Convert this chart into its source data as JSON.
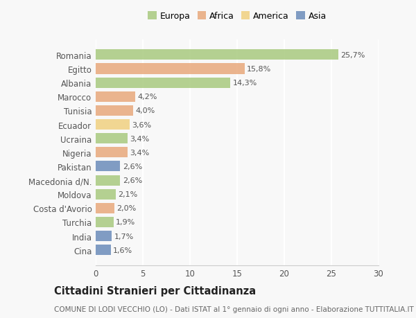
{
  "categories": [
    "Romania",
    "Egitto",
    "Albania",
    "Marocco",
    "Tunisia",
    "Ecuador",
    "Ucraina",
    "Nigeria",
    "Pakistan",
    "Macedonia d/N.",
    "Moldova",
    "Costa d'Avorio",
    "Turchia",
    "India",
    "Cina"
  ],
  "values": [
    25.7,
    15.8,
    14.3,
    4.2,
    4.0,
    3.6,
    3.4,
    3.4,
    2.6,
    2.6,
    2.1,
    2.0,
    1.9,
    1.7,
    1.6
  ],
  "labels": [
    "25,7%",
    "15,8%",
    "14,3%",
    "4,2%",
    "4,0%",
    "3,6%",
    "3,4%",
    "3,4%",
    "2,6%",
    "2,6%",
    "2,1%",
    "2,0%",
    "1,9%",
    "1,7%",
    "1,6%"
  ],
  "colors": [
    "#a8c97f",
    "#e8a87c",
    "#a8c97f",
    "#e8a87c",
    "#e8a87c",
    "#f0d080",
    "#a8c97f",
    "#e8a87c",
    "#6b8cba",
    "#a8c97f",
    "#a8c97f",
    "#e8a87c",
    "#a8c97f",
    "#6b8cba",
    "#6b8cba"
  ],
  "legend_labels": [
    "Europa",
    "Africa",
    "America",
    "Asia"
  ],
  "legend_colors": [
    "#a8c97f",
    "#e8a87c",
    "#f0d080",
    "#6b8cba"
  ],
  "xlim": [
    0,
    30
  ],
  "xticks": [
    0,
    5,
    10,
    15,
    20,
    25,
    30
  ],
  "title": "Cittadini Stranieri per Cittadinanza",
  "subtitle": "COMUNE DI LODI VECCHIO (LO) - Dati ISTAT al 1° gennaio di ogni anno - Elaborazione TUTTITALIA.IT",
  "bg_color": "#f8f8f8",
  "bar_height": 0.75,
  "label_fontsize": 8.0,
  "tick_fontsize": 8.5,
  "legend_fontsize": 9.0,
  "title_fontsize": 10.5,
  "subtitle_fontsize": 7.5
}
